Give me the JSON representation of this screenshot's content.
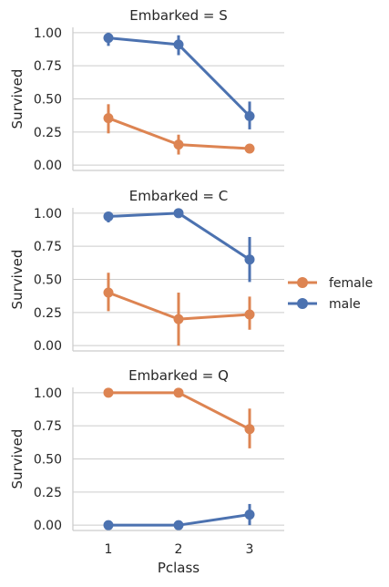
{
  "figure": {
    "legend": {
      "entries": [
        {
          "label": "female",
          "color": "#dd8452"
        },
        {
          "label": "male",
          "color": "#4c72b0"
        }
      ],
      "placement": "right"
    },
    "xlabel": "Pclass"
  },
  "chart_data": [
    {
      "type": "line",
      "title": "Embarked = S",
      "xlabel": "",
      "ylabel": "Survived",
      "categories": [
        "1",
        "2",
        "3"
      ],
      "ylim": [
        -0.04,
        1.04
      ],
      "yticks": [
        "0.00",
        "0.25",
        "0.50",
        "0.75",
        "1.00"
      ],
      "grid": "horizontal",
      "series": [
        {
          "name": "female",
          "color": "#dd8452",
          "values": [
            0.355,
            0.155,
            0.125
          ],
          "ci": [
            [
              0.24,
              0.46
            ],
            [
              0.08,
              0.23
            ],
            [
              0.09,
              0.16
            ]
          ]
        },
        {
          "name": "male",
          "color": "#4c72b0",
          "values": [
            0.96,
            0.91,
            0.37
          ],
          "ci": [
            [
              0.9,
              1.0
            ],
            [
              0.83,
              0.98
            ],
            [
              0.27,
              0.48
            ]
          ]
        }
      ]
    },
    {
      "type": "line",
      "title": "Embarked = C",
      "xlabel": "",
      "ylabel": "Survived",
      "categories": [
        "1",
        "2",
        "3"
      ],
      "ylim": [
        -0.04,
        1.04
      ],
      "yticks": [
        "0.00",
        "0.25",
        "0.50",
        "0.75",
        "1.00"
      ],
      "grid": "horizontal",
      "series": [
        {
          "name": "female",
          "color": "#dd8452",
          "values": [
            0.4,
            0.2,
            0.235
          ],
          "ci": [
            [
              0.26,
              0.55
            ],
            [
              0.0,
              0.4
            ],
            [
              0.12,
              0.37
            ]
          ]
        },
        {
          "name": "male",
          "color": "#4c72b0",
          "values": [
            0.975,
            1.0,
            0.65
          ],
          "ci": [
            [
              0.93,
              1.0
            ],
            [
              1.0,
              1.0
            ],
            [
              0.48,
              0.82
            ]
          ]
        }
      ]
    },
    {
      "type": "line",
      "title": "Embarked = Q",
      "xlabel": "Pclass",
      "ylabel": "Survived",
      "categories": [
        "1",
        "2",
        "3"
      ],
      "ylim": [
        -0.04,
        1.04
      ],
      "yticks": [
        "0.00",
        "0.25",
        "0.50",
        "0.75",
        "1.00"
      ],
      "grid": "horizontal",
      "series": [
        {
          "name": "female",
          "color": "#dd8452",
          "values": [
            1.0,
            1.0,
            0.725
          ],
          "ci": [
            [
              1.0,
              1.0
            ],
            [
              1.0,
              1.0
            ],
            [
              0.58,
              0.88
            ]
          ]
        },
        {
          "name": "male",
          "color": "#4c72b0",
          "values": [
            0.0,
            0.0,
            0.08
          ],
          "ci": [
            [
              0.0,
              0.0
            ],
            [
              0.0,
              0.0
            ],
            [
              0.0,
              0.16
            ]
          ]
        }
      ]
    }
  ]
}
